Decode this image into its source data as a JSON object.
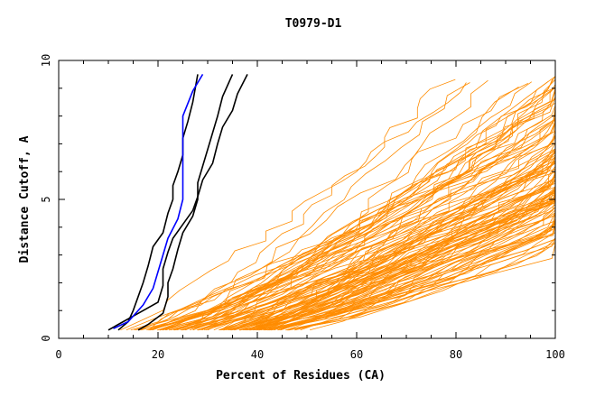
{
  "chart_data": {
    "type": "line",
    "title": "T0979-D1",
    "xlabel": "Percent of Residues (CA)",
    "ylabel": "Distance Cutoff, A",
    "xlim": [
      0,
      100
    ],
    "ylim": [
      0,
      10
    ],
    "x_ticks": [
      "0",
      "20",
      "40",
      "60",
      "80",
      "100"
    ],
    "y_ticks": [
      "0",
      "5",
      "10"
    ],
    "grid": false,
    "colors": {
      "background_series": "#ff8c00",
      "highlight_black": "#000000",
      "highlight_blue": "#0000ff"
    },
    "series": [
      {
        "color": "#000000",
        "points": [
          [
            12,
            0.3
          ],
          [
            14,
            0.6
          ],
          [
            15,
            1.0
          ],
          [
            16,
            1.5
          ],
          [
            17,
            2.0
          ],
          [
            18,
            2.6
          ],
          [
            19,
            3.3
          ],
          [
            21,
            3.8
          ],
          [
            22,
            4.5
          ],
          [
            23,
            5.0
          ],
          [
            23,
            5.5
          ],
          [
            24,
            6.0
          ],
          [
            25,
            6.6
          ],
          [
            25,
            7.2
          ],
          [
            26,
            7.8
          ],
          [
            27,
            8.5
          ],
          [
            28,
            9.5
          ]
        ]
      },
      {
        "color": "#000000",
        "points": [
          [
            16,
            0.3
          ],
          [
            18,
            0.5
          ],
          [
            21,
            0.9
          ],
          [
            22,
            1.5
          ],
          [
            22,
            2.0
          ],
          [
            23,
            2.5
          ],
          [
            24,
            3.2
          ],
          [
            25,
            3.8
          ],
          [
            27,
            4.4
          ],
          [
            28,
            5.0
          ],
          [
            28,
            5.6
          ],
          [
            29,
            6.2
          ],
          [
            30,
            6.8
          ],
          [
            31,
            7.4
          ],
          [
            32,
            8.0
          ],
          [
            33,
            8.7
          ],
          [
            35,
            9.5
          ]
        ]
      },
      {
        "color": "#000000",
        "points": [
          [
            10,
            0.3
          ],
          [
            13,
            0.6
          ],
          [
            16,
            0.9
          ],
          [
            20,
            1.3
          ],
          [
            21,
            1.9
          ],
          [
            21,
            2.5
          ],
          [
            22,
            3.1
          ],
          [
            23,
            3.6
          ],
          [
            25,
            4.1
          ],
          [
            27,
            4.6
          ],
          [
            28,
            5.1
          ],
          [
            29,
            5.7
          ],
          [
            31,
            6.3
          ],
          [
            32,
            7.0
          ],
          [
            33,
            7.6
          ],
          [
            35,
            8.2
          ],
          [
            36,
            8.8
          ],
          [
            38,
            9.5
          ]
        ]
      },
      {
        "color": "#0000ff",
        "points": [
          [
            11,
            0.35
          ],
          [
            14,
            0.6
          ],
          [
            17,
            1.2
          ],
          [
            19,
            1.8
          ],
          [
            20,
            2.4
          ],
          [
            21,
            3.0
          ],
          [
            22,
            3.6
          ],
          [
            24,
            4.3
          ],
          [
            25,
            5.0
          ],
          [
            25,
            6.0
          ],
          [
            25,
            7.0
          ],
          [
            25,
            8.0
          ],
          [
            27,
            8.9
          ],
          [
            29,
            9.5
          ]
        ]
      }
    ]
  }
}
